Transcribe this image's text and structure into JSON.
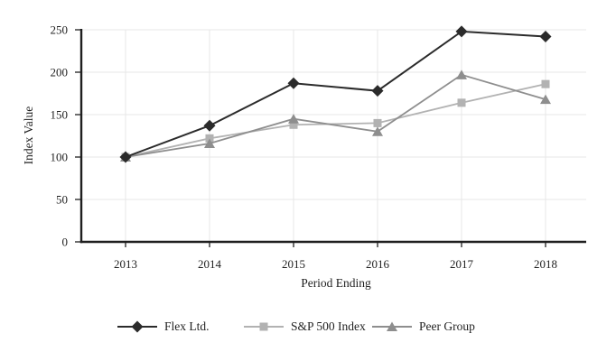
{
  "chart_data": {
    "type": "line",
    "title": "",
    "xlabel": "Period Ending",
    "ylabel": "Index Value",
    "categories": [
      "2013",
      "2014",
      "2015",
      "2016",
      "2017",
      "2018"
    ],
    "series": [
      {
        "name": "Flex Ltd.",
        "marker": "diamond",
        "color": "#2b2b2b",
        "line_width": 2,
        "values": [
          100,
          137,
          187,
          178,
          248,
          242
        ]
      },
      {
        "name": "S&P 500 Index",
        "marker": "square",
        "color": "#b2b2b2",
        "line_width": 1.8,
        "values": [
          100,
          122,
          138,
          140,
          164,
          186
        ]
      },
      {
        "name": "Peer Group",
        "marker": "triangle",
        "color": "#8e8e8e",
        "line_width": 1.8,
        "values": [
          100,
          116,
          145,
          130,
          197,
          168
        ]
      }
    ],
    "ylim": [
      0,
      250
    ],
    "yticks": [
      0,
      50,
      100,
      150,
      200,
      250
    ],
    "grid": true,
    "legend_position": "bottom",
    "colors": {
      "axis": "#1f1f1f",
      "text": "#1f1f1f",
      "gridline": "#e7e7e7",
      "background": "#ffffff"
    }
  }
}
